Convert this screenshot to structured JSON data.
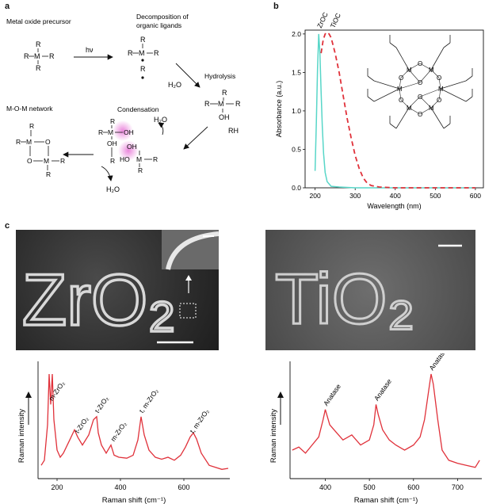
{
  "panel_a": {
    "label": "a",
    "precursor_title": "Metal oxide precursor",
    "decomp_title_1": "Decomposition of",
    "decomp_title_2": "organic ligands",
    "hv": "hν",
    "water_1": "H₂O",
    "hydrolysis": "Hydrolysis",
    "rh": "RH",
    "mom_title": "M-O-M network",
    "condensation": "Condensation",
    "water_2": "H₂O",
    "water_3": "H₂O",
    "atom_M": "M",
    "atom_R": "R",
    "atom_O": "O",
    "oh": "OH",
    "ho": "HO"
  },
  "panel_b": {
    "label": "b",
    "molecule_atoms": {
      "M": "M",
      "O": "O"
    }
  },
  "panel_c": {
    "label": "c",
    "zro2_image_text": "ZrO₂",
    "tio2_image_text": "TiO₂"
  },
  "colors": {
    "red": "#e0313a",
    "cyan": "#58d6c8",
    "pink": "#e87ad8"
  },
  "chart_data": [
    {
      "type": "line",
      "panel": "b",
      "title": "",
      "xlabel": "Wavelength (nm)",
      "ylabel": "Absorbance (a.u.)",
      "xlim": [
        175,
        620
      ],
      "ylim": [
        0,
        2.05
      ],
      "xticks": [
        200,
        300,
        400,
        500,
        600
      ],
      "yticks": [
        0.0,
        0.5,
        1.0,
        1.5,
        2.0
      ],
      "ytick_labels": [
        "0.0",
        "0.5",
        "1.0",
        "1.5",
        "2.0"
      ],
      "series": [
        {
          "name": "ZrOC",
          "style": "solid",
          "color": "#58d6c8",
          "x": [
            200,
            203,
            206,
            209,
            212,
            215,
            218,
            221,
            225,
            230,
            240,
            260,
            300,
            400,
            500,
            600
          ],
          "y": [
            0.22,
            0.85,
            1.55,
            2.0,
            1.75,
            1.25,
            0.8,
            0.45,
            0.2,
            0.08,
            0.02,
            0.01,
            0.0,
            0.0,
            0.0,
            0.0
          ]
        },
        {
          "name": "TiOC",
          "style": "dashed",
          "color": "#e0313a",
          "x": [
            215,
            220,
            225,
            230,
            235,
            240,
            250,
            260,
            270,
            280,
            290,
            300,
            310,
            320,
            330,
            340,
            360,
            400,
            500,
            600
          ],
          "y": [
            1.75,
            1.92,
            2.0,
            2.02,
            2.0,
            1.95,
            1.75,
            1.5,
            1.2,
            0.9,
            0.65,
            0.42,
            0.25,
            0.13,
            0.06,
            0.03,
            0.01,
            0.0,
            0.0,
            0.0
          ]
        }
      ]
    },
    {
      "type": "line",
      "panel": "c-left",
      "title": "",
      "xlabel": "Raman shift (cm⁻¹)",
      "ylabel": "Raman intensity",
      "xlim": [
        140,
        745
      ],
      "xticks": [
        200,
        400,
        600
      ],
      "series": [
        {
          "name": "",
          "color": "#e0313a",
          "x": [
            150,
            160,
            170,
            175,
            180,
            185,
            190,
            200,
            210,
            220,
            240,
            255,
            265,
            280,
            300,
            315,
            325,
            330,
            340,
            355,
            370,
            380,
            395,
            420,
            440,
            455,
            465,
            475,
            490,
            510,
            530,
            550,
            570,
            590,
            605,
            620,
            630,
            640,
            655,
            680,
            720,
            740
          ],
          "y": [
            0.1,
            0.15,
            0.5,
            1.0,
            0.7,
            1.0,
            0.55,
            0.25,
            0.18,
            0.22,
            0.35,
            0.45,
            0.38,
            0.3,
            0.4,
            0.55,
            0.58,
            0.42,
            0.3,
            0.22,
            0.3,
            0.2,
            0.18,
            0.17,
            0.2,
            0.35,
            0.58,
            0.4,
            0.25,
            0.18,
            0.16,
            0.18,
            0.15,
            0.2,
            0.28,
            0.38,
            0.42,
            0.36,
            0.22,
            0.1,
            0.06,
            0.07
          ]
        }
      ],
      "annotations": [
        {
          "text": "m-ZrO₂",
          "x": 180
        },
        {
          "text": "t-ZrO₂",
          "x": 262
        },
        {
          "text": "t-ZrO₂",
          "x": 325
        },
        {
          "text": "m-ZrO₂",
          "x": 375
        },
        {
          "text": "t, m-ZrO₂",
          "x": 465
        },
        {
          "text": "t, m-ZrO₂",
          "x": 625
        }
      ]
    },
    {
      "type": "line",
      "panel": "c-right",
      "title": "",
      "xlabel": "Raman shift (cm⁻¹)",
      "ylabel": "Raman intensity",
      "xlim": [
        320,
        755
      ],
      "xticks": [
        400,
        500,
        600,
        700
      ],
      "series": [
        {
          "name": "",
          "color": "#e0313a",
          "x": [
            325,
            340,
            355,
            370,
            385,
            395,
            400,
            410,
            420,
            440,
            460,
            480,
            500,
            510,
            515,
            520,
            530,
            545,
            560,
            580,
            600,
            615,
            625,
            635,
            640,
            645,
            655,
            665,
            680,
            700,
            720,
            740,
            750
          ],
          "y": [
            0.25,
            0.28,
            0.22,
            0.3,
            0.38,
            0.55,
            0.65,
            0.5,
            0.45,
            0.35,
            0.4,
            0.3,
            0.35,
            0.5,
            0.7,
            0.6,
            0.45,
            0.35,
            0.3,
            0.25,
            0.3,
            0.38,
            0.55,
            0.85,
            1.0,
            0.9,
            0.55,
            0.25,
            0.15,
            0.12,
            0.1,
            0.08,
            0.15
          ]
        }
      ],
      "annotations": [
        {
          "text": "Anatase",
          "x": 400
        },
        {
          "text": "Anatase",
          "x": 515
        },
        {
          "text": "Anatase",
          "x": 640
        }
      ]
    }
  ]
}
